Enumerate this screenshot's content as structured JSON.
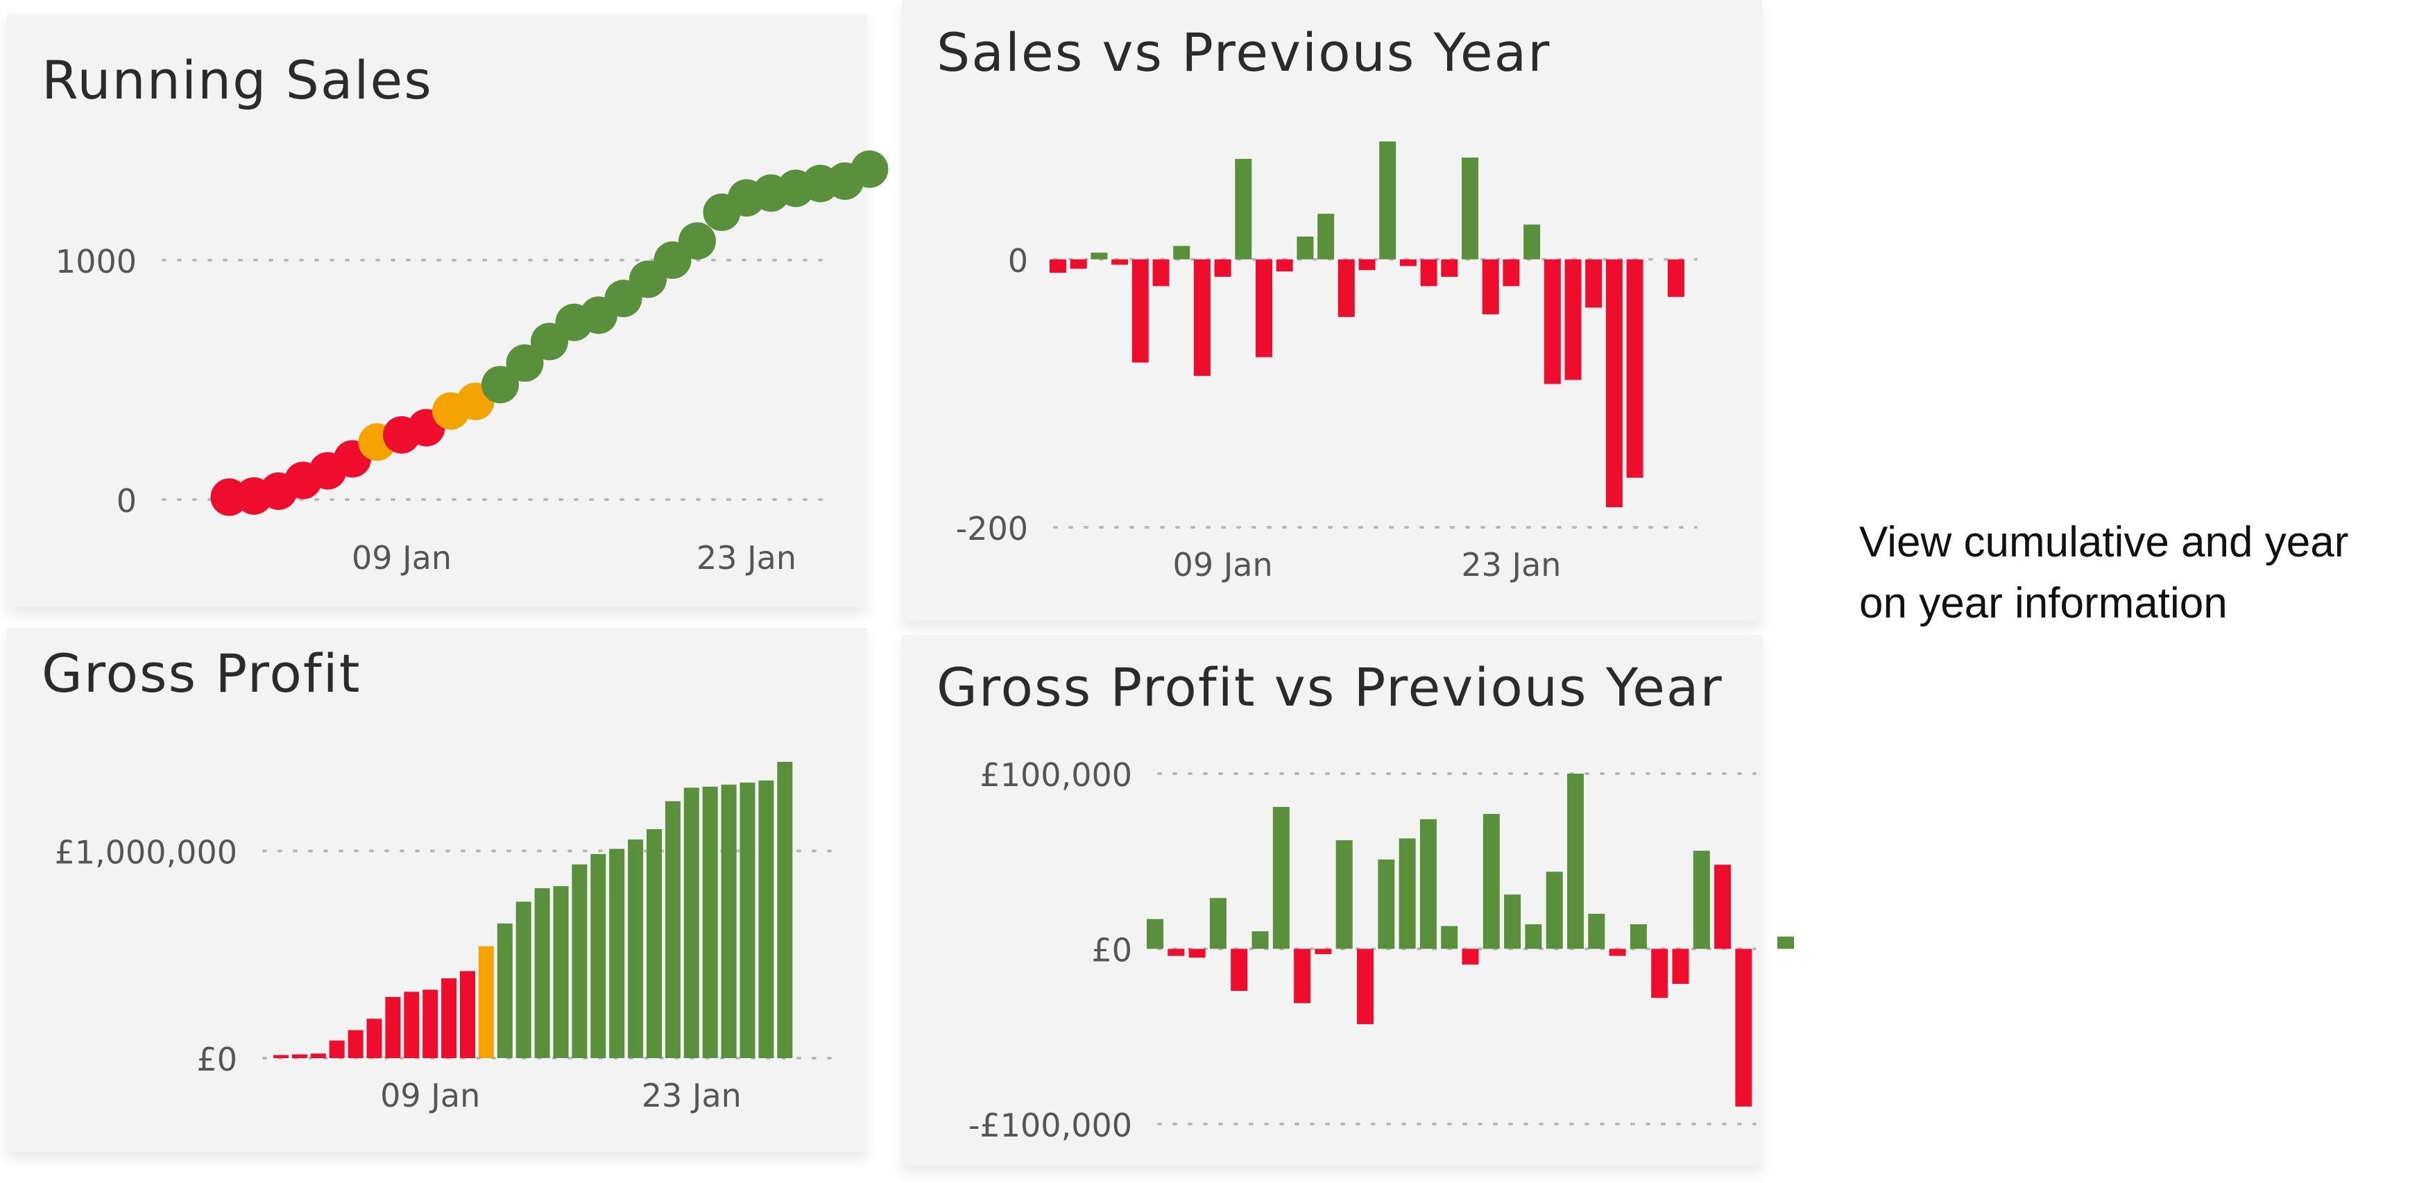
{
  "side_note": {
    "lines": [
      "View cumulative and year",
      "on year information"
    ]
  },
  "colors": {
    "red": "#ef0d2d",
    "orange": "#f5a300",
    "green": "#5a8f3b",
    "axis_text": "#555555",
    "grid": "#b8b8b8"
  },
  "chart_data": [
    {
      "id": "running-sales",
      "type": "scatter",
      "title": "Running Sales",
      "xlabel": "",
      "ylabel": "",
      "y_ticks": [
        {
          "value": 0,
          "label": "0"
        },
        {
          "value": 1000,
          "label": "1000"
        }
      ],
      "x_ticks": [
        {
          "day": 9,
          "label": "09 Jan"
        },
        {
          "day": 23,
          "label": "23 Jan"
        }
      ],
      "xlim": [
        0.5,
        29.5
      ],
      "ylim": [
        0,
        1420
      ],
      "grid": "horizontal-dotted",
      "points": [
        {
          "day": 2,
          "y": 10,
          "color": "red"
        },
        {
          "day": 3,
          "y": 15,
          "color": "red"
        },
        {
          "day": 4,
          "y": 35,
          "color": "red"
        },
        {
          "day": 5,
          "y": 80,
          "color": "red"
        },
        {
          "day": 6,
          "y": 120,
          "color": "red"
        },
        {
          "day": 7,
          "y": 170,
          "color": "red"
        },
        {
          "day": 8,
          "y": 240,
          "color": "orange"
        },
        {
          "day": 9,
          "y": 270,
          "color": "red"
        },
        {
          "day": 10,
          "y": 300,
          "color": "red"
        },
        {
          "day": 11,
          "y": 370,
          "color": "orange"
        },
        {
          "day": 12,
          "y": 410,
          "color": "orange"
        },
        {
          "day": 13,
          "y": 480,
          "color": "green"
        },
        {
          "day": 14,
          "y": 570,
          "color": "green"
        },
        {
          "day": 15,
          "y": 660,
          "color": "green"
        },
        {
          "day": 16,
          "y": 740,
          "color": "green"
        },
        {
          "day": 17,
          "y": 770,
          "color": "green"
        },
        {
          "day": 18,
          "y": 840,
          "color": "green"
        },
        {
          "day": 19,
          "y": 920,
          "color": "green"
        },
        {
          "day": 20,
          "y": 1000,
          "color": "green"
        },
        {
          "day": 21,
          "y": 1080,
          "color": "green"
        },
        {
          "day": 22,
          "y": 1200,
          "color": "green"
        },
        {
          "day": 23,
          "y": 1260,
          "color": "green"
        },
        {
          "day": 24,
          "y": 1280,
          "color": "green"
        },
        {
          "day": 25,
          "y": 1300,
          "color": "green"
        },
        {
          "day": 26,
          "y": 1320,
          "color": "green"
        },
        {
          "day": 27,
          "y": 1330,
          "color": "green"
        },
        {
          "day": 28,
          "y": 1380,
          "color": "green"
        }
      ]
    },
    {
      "id": "sales-vs-previous-year",
      "type": "bar",
      "title": "Sales vs Previous Year",
      "xlabel": "",
      "ylabel": "",
      "y_ticks": [
        {
          "value": 0,
          "label": "0"
        },
        {
          "value": -200,
          "label": "-200"
        }
      ],
      "x_ticks": [
        {
          "day": 9,
          "label": "09 Jan"
        },
        {
          "day": 23,
          "label": "23 Jan"
        }
      ],
      "xlim": [
        0.5,
        31.5
      ],
      "ylim": [
        -200,
        90
      ],
      "grid": "horizontal-dotted",
      "bars": [
        {
          "day": 1,
          "value": -10,
          "color": "red"
        },
        {
          "day": 2,
          "value": -7,
          "color": "red"
        },
        {
          "day": 3,
          "value": 5,
          "color": "green"
        },
        {
          "day": 4,
          "value": -4,
          "color": "red"
        },
        {
          "day": 5,
          "value": -77,
          "color": "red"
        },
        {
          "day": 6,
          "value": -20,
          "color": "red"
        },
        {
          "day": 7,
          "value": 10,
          "color": "green"
        },
        {
          "day": 8,
          "value": -87,
          "color": "red"
        },
        {
          "day": 9,
          "value": -13,
          "color": "red"
        },
        {
          "day": 10,
          "value": 75,
          "color": "green"
        },
        {
          "day": 11,
          "value": -73,
          "color": "red"
        },
        {
          "day": 12,
          "value": -9,
          "color": "red"
        },
        {
          "day": 13,
          "value": 17,
          "color": "green"
        },
        {
          "day": 14,
          "value": 34,
          "color": "green"
        },
        {
          "day": 15,
          "value": -43,
          "color": "red"
        },
        {
          "day": 16,
          "value": -8,
          "color": "red"
        },
        {
          "day": 17,
          "value": 88,
          "color": "green"
        },
        {
          "day": 18,
          "value": -5,
          "color": "red"
        },
        {
          "day": 19,
          "value": -20,
          "color": "red"
        },
        {
          "day": 20,
          "value": -13,
          "color": "red"
        },
        {
          "day": 21,
          "value": 76,
          "color": "green"
        },
        {
          "day": 22,
          "value": -41,
          "color": "red"
        },
        {
          "day": 23,
          "value": -20,
          "color": "red"
        },
        {
          "day": 24,
          "value": 26,
          "color": "green"
        },
        {
          "day": 25,
          "value": -93,
          "color": "red"
        },
        {
          "day": 26,
          "value": -90,
          "color": "red"
        },
        {
          "day": 27,
          "value": -36,
          "color": "red"
        },
        {
          "day": 28,
          "value": -185,
          "color": "red"
        },
        {
          "day": 29,
          "value": -163,
          "color": "red"
        },
        {
          "day": 31,
          "value": -28,
          "color": "red"
        }
      ]
    },
    {
      "id": "gross-profit",
      "type": "bar",
      "title": "Gross Profit",
      "xlabel": "",
      "ylabel": "",
      "y_ticks": [
        {
          "value": 0,
          "label": "£0"
        },
        {
          "value": 1000000,
          "label": "£1,000,000"
        }
      ],
      "x_ticks": [
        {
          "day": 9,
          "label": "09 Jan"
        },
        {
          "day": 23,
          "label": "23 Jan"
        }
      ],
      "xlim": [
        0.5,
        28.5
      ],
      "ylim": [
        0,
        1440000
      ],
      "grid": "horizontal-dotted",
      "bars": [
        {
          "day": 1,
          "value": 15000,
          "color": "red"
        },
        {
          "day": 2,
          "value": 18000,
          "color": "red"
        },
        {
          "day": 3,
          "value": 22000,
          "color": "red"
        },
        {
          "day": 4,
          "value": 85000,
          "color": "red"
        },
        {
          "day": 5,
          "value": 135000,
          "color": "red"
        },
        {
          "day": 6,
          "value": 190000,
          "color": "red"
        },
        {
          "day": 7,
          "value": 295000,
          "color": "red"
        },
        {
          "day": 8,
          "value": 320000,
          "color": "red"
        },
        {
          "day": 9,
          "value": 330000,
          "color": "red"
        },
        {
          "day": 10,
          "value": 385000,
          "color": "red"
        },
        {
          "day": 11,
          "value": 420000,
          "color": "red"
        },
        {
          "day": 12,
          "value": 540000,
          "color": "orange"
        },
        {
          "day": 13,
          "value": 650000,
          "color": "green"
        },
        {
          "day": 14,
          "value": 755000,
          "color": "green"
        },
        {
          "day": 15,
          "value": 820000,
          "color": "green"
        },
        {
          "day": 16,
          "value": 830000,
          "color": "green"
        },
        {
          "day": 17,
          "value": 935000,
          "color": "green"
        },
        {
          "day": 18,
          "value": 985000,
          "color": "green"
        },
        {
          "day": 19,
          "value": 1010000,
          "color": "green"
        },
        {
          "day": 20,
          "value": 1055000,
          "color": "green"
        },
        {
          "day": 21,
          "value": 1105000,
          "color": "green"
        },
        {
          "day": 22,
          "value": 1240000,
          "color": "green"
        },
        {
          "day": 23,
          "value": 1305000,
          "color": "green"
        },
        {
          "day": 24,
          "value": 1310000,
          "color": "green"
        },
        {
          "day": 25,
          "value": 1320000,
          "color": "green"
        },
        {
          "day": 26,
          "value": 1330000,
          "color": "green"
        },
        {
          "day": 27,
          "value": 1340000,
          "color": "green"
        },
        {
          "day": 28,
          "value": 1430000,
          "color": "green"
        }
      ]
    },
    {
      "id": "gross-profit-vs-previous-year",
      "type": "bar",
      "title": "Gross Profit vs Previous Year",
      "xlabel": "",
      "ylabel": "",
      "y_ticks": [
        {
          "value": 100000,
          "label": "£100,000"
        },
        {
          "value": 0,
          "label": "£0"
        },
        {
          "value": -100000,
          "label": "-£100,000"
        }
      ],
      "x_ticks": [],
      "xlim": [
        0.5,
        31.5
      ],
      "ylim": [
        -100000,
        100000
      ],
      "grid": "horizontal-dotted",
      "bars": [
        {
          "day": 1,
          "value": 17000,
          "color": "green"
        },
        {
          "day": 2,
          "value": -4000,
          "color": "red"
        },
        {
          "day": 3,
          "value": -5000,
          "color": "red"
        },
        {
          "day": 4,
          "value": 29000,
          "color": "green"
        },
        {
          "day": 5,
          "value": -24000,
          "color": "red"
        },
        {
          "day": 6,
          "value": 10000,
          "color": "green"
        },
        {
          "day": 7,
          "value": 81000,
          "color": "green"
        },
        {
          "day": 8,
          "value": -31000,
          "color": "red"
        },
        {
          "day": 9,
          "value": -3000,
          "color": "red"
        },
        {
          "day": 10,
          "value": 62000,
          "color": "green"
        },
        {
          "day": 11,
          "value": -43000,
          "color": "red"
        },
        {
          "day": 12,
          "value": 51000,
          "color": "green"
        },
        {
          "day": 13,
          "value": 63000,
          "color": "green"
        },
        {
          "day": 14,
          "value": 74000,
          "color": "green"
        },
        {
          "day": 15,
          "value": 13000,
          "color": "green"
        },
        {
          "day": 16,
          "value": -9000,
          "color": "red"
        },
        {
          "day": 17,
          "value": 77000,
          "color": "green"
        },
        {
          "day": 18,
          "value": 31000,
          "color": "green"
        },
        {
          "day": 19,
          "value": 14000,
          "color": "green"
        },
        {
          "day": 20,
          "value": 44000,
          "color": "green"
        },
        {
          "day": 21,
          "value": 100000,
          "color": "green"
        },
        {
          "day": 22,
          "value": 20000,
          "color": "green"
        },
        {
          "day": 23,
          "value": -4000,
          "color": "red"
        },
        {
          "day": 24,
          "value": 14000,
          "color": "green"
        },
        {
          "day": 25,
          "value": -28000,
          "color": "red"
        },
        {
          "day": 26,
          "value": -20000,
          "color": "red"
        },
        {
          "day": 27,
          "value": 56000,
          "color": "green"
        },
        {
          "day": 28,
          "value": 48000,
          "color": "red"
        },
        {
          "day": 29,
          "value": -90000,
          "color": "red"
        },
        {
          "day": 31,
          "value": 7000,
          "color": "green"
        }
      ]
    }
  ]
}
